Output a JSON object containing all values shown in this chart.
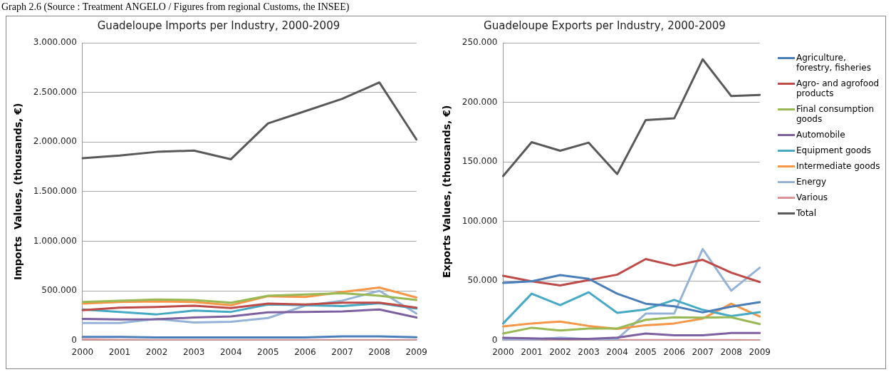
{
  "chart_data": [
    {
      "type": "line",
      "title": "Guadeloupe Imports per Industry, 2000-2009",
      "ylabel": "Imports  Values, (thousands, €)",
      "annotations": [
        "Graph 2.6 (Source : Treatment ANGELO / Figures from regional Customs, the INSEE)"
      ],
      "categories": [
        "2000",
        "2001",
        "2002",
        "2003",
        "2004",
        "2005",
        "2006",
        "2007",
        "2008",
        "2009"
      ],
      "ylim": [
        0,
        3000000
      ],
      "yticks": [
        {
          "value": 0,
          "label": "0"
        },
        {
          "value": 500000,
          "label": "500.000"
        },
        {
          "value": 1000000,
          "label": "1.000.000"
        },
        {
          "value": 1500000,
          "label": "1.500.000"
        },
        {
          "value": 2000000,
          "label": "2.000.000"
        },
        {
          "value": 2500000,
          "label": "2.500.000"
        },
        {
          "value": 3000000,
          "label": "3.000.000"
        }
      ],
      "grid": "y",
      "marker": "none",
      "legend": false,
      "series": [
        {
          "color": "#4a7ebb",
          "values": [
            35000,
            35000,
            30000,
            30000,
            30000,
            30000,
            30000,
            40000,
            40000,
            32000
          ]
        },
        {
          "color": "#be4b48",
          "values": [
            305000,
            330000,
            337000,
            350000,
            325000,
            370000,
            362000,
            380000,
            380000,
            330000
          ]
        },
        {
          "color": "#98b954",
          "values": [
            387000,
            400000,
            412000,
            407000,
            380000,
            450000,
            462000,
            475000,
            450000,
            407000
          ]
        },
        {
          "color": "#7d60a0",
          "values": [
            217000,
            210000,
            212000,
            230000,
            242000,
            282000,
            287000,
            292000,
            312000,
            230000
          ]
        },
        {
          "color": "#46aac5",
          "values": [
            312000,
            287000,
            262000,
            300000,
            287000,
            362000,
            355000,
            345000,
            375000,
            320000
          ]
        },
        {
          "color": "#f79646",
          "values": [
            370000,
            387000,
            392000,
            387000,
            355000,
            445000,
            437000,
            487000,
            532000,
            432000
          ]
        },
        {
          "color": "#95b3d7",
          "values": [
            175000,
            175000,
            217000,
            180000,
            187000,
            225000,
            350000,
            400000,
            500000,
            270000
          ]
        },
        {
          "color": "#d99694",
          "values": [
            10000,
            5000,
            2000,
            2000,
            2000,
            2000,
            2000,
            2000,
            2000,
            2000
          ]
        },
        {
          "color": "#595959",
          "values": [
            1836000,
            1863000,
            1900000,
            1913000,
            1826000,
            2187000,
            2310000,
            2435000,
            2600000,
            2025000
          ]
        }
      ]
    },
    {
      "type": "line",
      "title": "Guadeloupe Exports per Industry, 2000-2009",
      "ylabel": "Exports Values, (thousands, €)",
      "categories": [
        "2000",
        "2001",
        "2002",
        "2003",
        "2004",
        "2005",
        "2006",
        "2007",
        "2008",
        "2009"
      ],
      "ylim": [
        0,
        250000
      ],
      "yticks": [
        {
          "value": 0,
          "label": "0"
        },
        {
          "value": 50000,
          "label": "50.000"
        },
        {
          "value": 100000,
          "label": "100.000"
        },
        {
          "value": 150000,
          "label": "150.000"
        },
        {
          "value": 200000,
          "label": "200.000"
        },
        {
          "value": 250000,
          "label": "250.000"
        }
      ],
      "grid": "y",
      "marker": "none",
      "legend": "right",
      "series": [
        {
          "name": "Agriculture, forestry, fisheries",
          "color": "#4a7ebb",
          "values": [
            48300,
            49600,
            54800,
            51700,
            39200,
            30800,
            28700,
            23500,
            28300,
            32100
          ]
        },
        {
          "name": "Agro- and agrofood products",
          "color": "#be4b48",
          "values": [
            54200,
            49600,
            46200,
            50600,
            55200,
            68300,
            62700,
            67700,
            56900,
            49000
          ]
        },
        {
          "name": "Final consumption goods",
          "color": "#98b954",
          "values": [
            5800,
            10600,
            8300,
            10000,
            10000,
            17300,
            19400,
            19000,
            19400,
            13700
          ]
        },
        {
          "name": "Automobile",
          "color": "#7d60a0",
          "values": [
            2100,
            1700,
            1200,
            1200,
            2300,
            5800,
            4200,
            4200,
            6200,
            6200
          ]
        },
        {
          "name": "Equipment goods",
          "color": "#46aac5",
          "values": [
            14200,
            39200,
            29600,
            40400,
            23100,
            26000,
            34000,
            25600,
            20400,
            23700
          ]
        },
        {
          "name": "Intermediate goods",
          "color": "#f79646",
          "values": [
            11700,
            14200,
            15800,
            12100,
            9600,
            12700,
            14200,
            18300,
            30800,
            20000
          ]
        },
        {
          "name": "Energy",
          "color": "#95b3d7",
          "values": [
            600,
            600,
            2300,
            1000,
            1200,
            22500,
            22500,
            76700,
            41700,
            61000
          ]
        },
        {
          "name": "Various",
          "color": "#d99694",
          "values": [
            200,
            200,
            200,
            200,
            200,
            200,
            200,
            200,
            200,
            0
          ]
        },
        {
          "name": "Total",
          "color": "#595959",
          "values": [
            138000,
            166500,
            159300,
            166100,
            139700,
            185100,
            186500,
            236100,
            205200,
            206200
          ]
        }
      ]
    }
  ]
}
